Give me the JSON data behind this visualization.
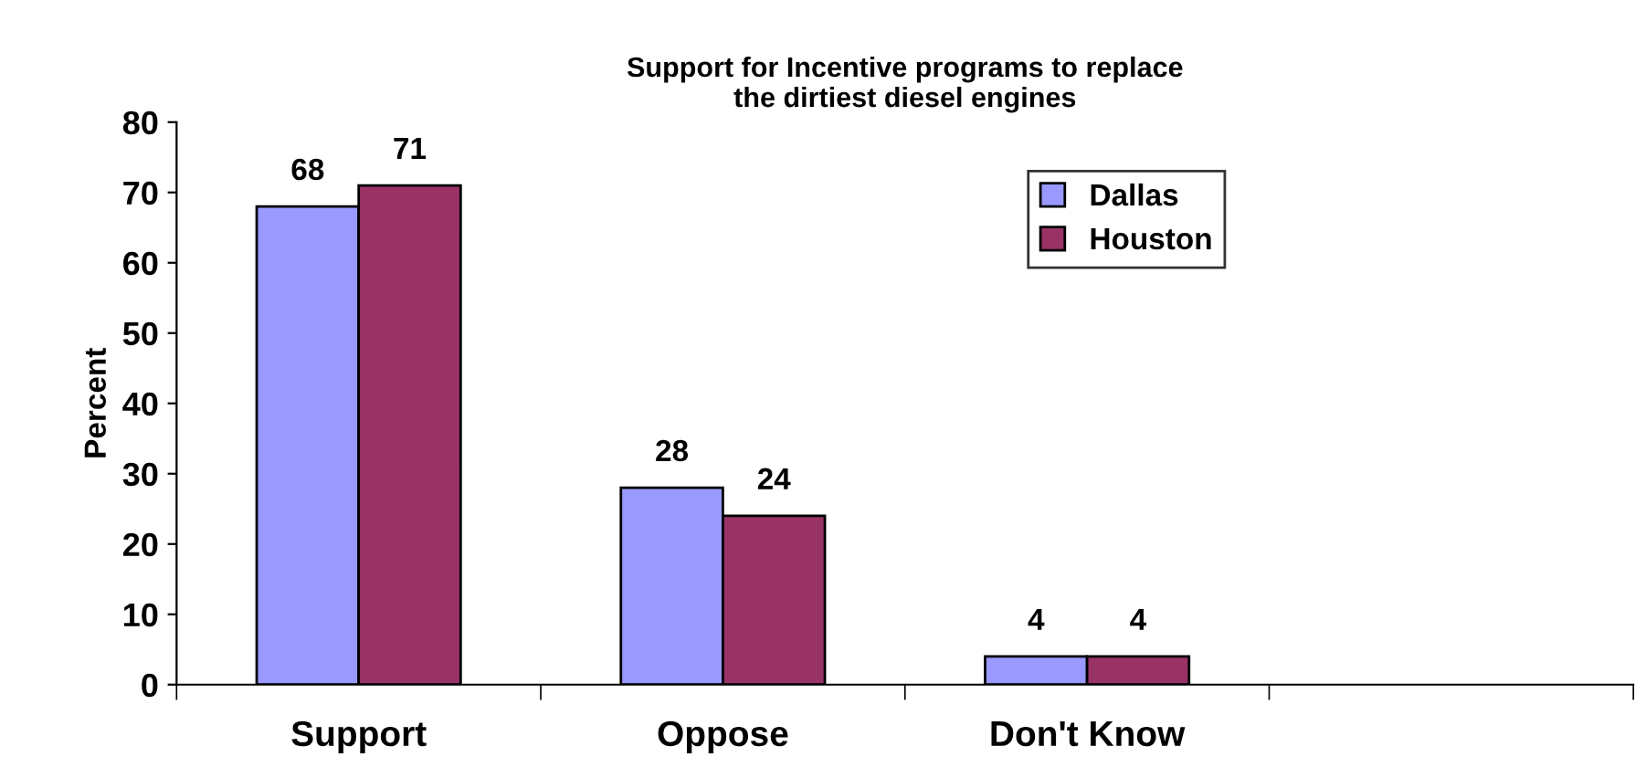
{
  "chart_data": {
    "type": "bar",
    "title": "Support for Incentive programs to replace\nthe dirtiest diesel engines",
    "ylabel": "Percent",
    "categories": [
      "Support",
      "Oppose",
      "Don't Know",
      null
    ],
    "series": [
      {
        "name": "Dallas",
        "color": "#9999ff",
        "values": [
          68,
          28,
          4,
          null
        ]
      },
      {
        "name": "Houston",
        "color": "#993366",
        "values": [
          71,
          24,
          4,
          null
        ]
      }
    ],
    "ylim": [
      0,
      80
    ],
    "yticks": [
      0,
      10,
      20,
      30,
      40,
      50,
      60,
      70,
      80
    ],
    "grid": false,
    "legend": "top right",
    "data_labels": true
  }
}
